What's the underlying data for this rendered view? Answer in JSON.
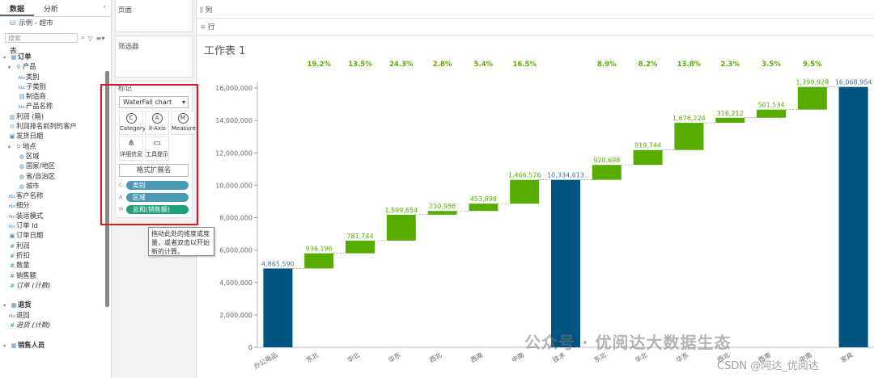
{
  "left_pane": {
    "tabs": [
      "数据",
      "分析"
    ],
    "collapse": "‹",
    "datasource": "示例 - 超市",
    "search_placeholder": "搜索",
    "section_label": "表",
    "tree": [
      {
        "label": "订单",
        "type": "header",
        "arrow": "▾",
        "icon": "table-icon"
      },
      {
        "label": "产品",
        "indent": 1,
        "arrow": "▾",
        "icon": "hierarchy-icon"
      },
      {
        "label": "类别",
        "indent": 3,
        "icon": "abc-icon"
      },
      {
        "label": "子类别",
        "indent": 3,
        "icon": "abc-icon"
      },
      {
        "label": "制造商",
        "indent": 3,
        "icon": "link-icon"
      },
      {
        "label": "产品名称",
        "indent": 3,
        "icon": "abc-icon"
      },
      {
        "label": "利润 (箱)",
        "indent": 1,
        "icon": "bin-icon"
      },
      {
        "label": "利润排名前列的客户",
        "indent": 1,
        "icon": "set-icon"
      },
      {
        "label": "发货日期",
        "indent": 1,
        "icon": "date-icon"
      },
      {
        "label": "地点",
        "indent": 1,
        "arrow": "▾",
        "icon": "hierarchy-icon"
      },
      {
        "label": "区域",
        "indent": 3,
        "icon": "globe-icon"
      },
      {
        "label": "国家/地区",
        "indent": 3,
        "icon": "globe-icon"
      },
      {
        "label": "省/自治区",
        "indent": 3,
        "icon": "globe-icon"
      },
      {
        "label": "城市",
        "indent": 3,
        "icon": "globe-icon"
      },
      {
        "label": "客户名称",
        "indent": 1,
        "icon": "abc-icon"
      },
      {
        "label": "细分",
        "indent": 1,
        "icon": "abc-icon"
      },
      {
        "label": "装运模式",
        "indent": 1,
        "icon": "abc-icon"
      },
      {
        "label": "订单 Id",
        "indent": 1,
        "icon": "abc-icon"
      },
      {
        "label": "订单日期",
        "indent": 1,
        "icon": "date-icon"
      },
      {
        "label": "利润",
        "indent": 1,
        "icon": "measure-icon",
        "green": true
      },
      {
        "label": "折扣",
        "indent": 1,
        "icon": "measure-icon",
        "green": true
      },
      {
        "label": "数量",
        "indent": 1,
        "icon": "measure-icon",
        "green": true
      },
      {
        "label": "销售额",
        "indent": 1,
        "icon": "measure-icon",
        "green": true
      },
      {
        "label": "订单 (计数)",
        "indent": 1,
        "icon": "measure-icon",
        "green": true,
        "italic": true
      },
      {
        "label": "",
        "spacer": true
      },
      {
        "label": "退货",
        "type": "header",
        "arrow": "▾",
        "icon": "table-icon"
      },
      {
        "label": "退回",
        "indent": 1,
        "icon": "abc-icon"
      },
      {
        "label": "退货 (计数)",
        "indent": 1,
        "icon": "measure-icon",
        "green": true,
        "italic": true
      },
      {
        "label": "",
        "spacer": true
      },
      {
        "label": "销售人员",
        "type": "header",
        "arrow": "▾",
        "icon": "table-icon"
      }
    ]
  },
  "mid_pane": {
    "pages_label": "页面",
    "filters_label": "筛选器",
    "marks_label": "标记",
    "mark_type": "WaterFall chart",
    "mark_buttons": [
      {
        "label": "Category",
        "glyph": "C",
        "kind": "circle"
      },
      {
        "label": "X-Axis",
        "glyph": "A",
        "kind": "circle"
      },
      {
        "label": "Measure",
        "glyph": "M",
        "kind": "circle"
      },
      {
        "label": "详细信息",
        "glyph": "⋔",
        "kind": "square"
      },
      {
        "label": "工具提示",
        "glyph": "▭",
        "kind": "square"
      }
    ],
    "format_ext": "格式扩展名",
    "pills": [
      {
        "slot": "C",
        "label": "类别",
        "color": "blue"
      },
      {
        "slot": "A",
        "label": "区域",
        "color": "blue"
      },
      {
        "slot": "M",
        "label": "总和(销售额)",
        "color": "green"
      }
    ],
    "tooltip": "拖动此处的维度或度量，或者双击以开始新的计算。"
  },
  "shelves": {
    "columns": "列",
    "rows": "行"
  },
  "sheet_title": "工作表 1",
  "watermark": "公众号 · 优阅达大数据生态",
  "csdn": "CSDN @阿达_优阅达",
  "colors": {
    "total": "#005482",
    "step": "#56ad00",
    "pct": "#56ad00",
    "axis": "#666666"
  },
  "chart_data": {
    "type": "waterfall",
    "categories": [
      "办公用品",
      "东北",
      "华北",
      "华东",
      "西北",
      "西南",
      "中南",
      "技术",
      "东北",
      "华北",
      "华东",
      "西北",
      "西南",
      "中南",
      "家具"
    ],
    "values": [
      4865590,
      936196,
      781744,
      1599654,
      230956,
      453898,
      1466576,
      10334613,
      920698,
      919744,
      1676224,
      316212,
      501534,
      1399928,
      16068954
    ],
    "value_labels": [
      "4,865,590",
      "936,196",
      "781,744",
      "1,599,654",
      "230,956",
      "453,898",
      "1,466,576",
      "10,334,613",
      "920,698",
      "919,744",
      "1,676,224",
      "316,212",
      "501,534",
      "1,399,928",
      "16,068,954"
    ],
    "kinds": [
      "total",
      "step",
      "step",
      "step",
      "step",
      "step",
      "step",
      "total",
      "step",
      "step",
      "step",
      "step",
      "step",
      "step",
      "total"
    ],
    "pct_labels": [
      "",
      "19.2%",
      "13.5%",
      "24.3%",
      "2.8%",
      "5.4%",
      "16.5%",
      "",
      "8.9%",
      "8.2%",
      "13.8%",
      "2.3%",
      "3.5%",
      "9.5%",
      ""
    ],
    "ylim": [
      0,
      16000000
    ],
    "yticks": [
      "0",
      "2,000,000",
      "4,000,000",
      "6,000,000",
      "8,000,000",
      "10,000,000",
      "12,000,000",
      "14,000,000",
      "16,000,000"
    ],
    "xlabel": "",
    "ylabel": ""
  }
}
